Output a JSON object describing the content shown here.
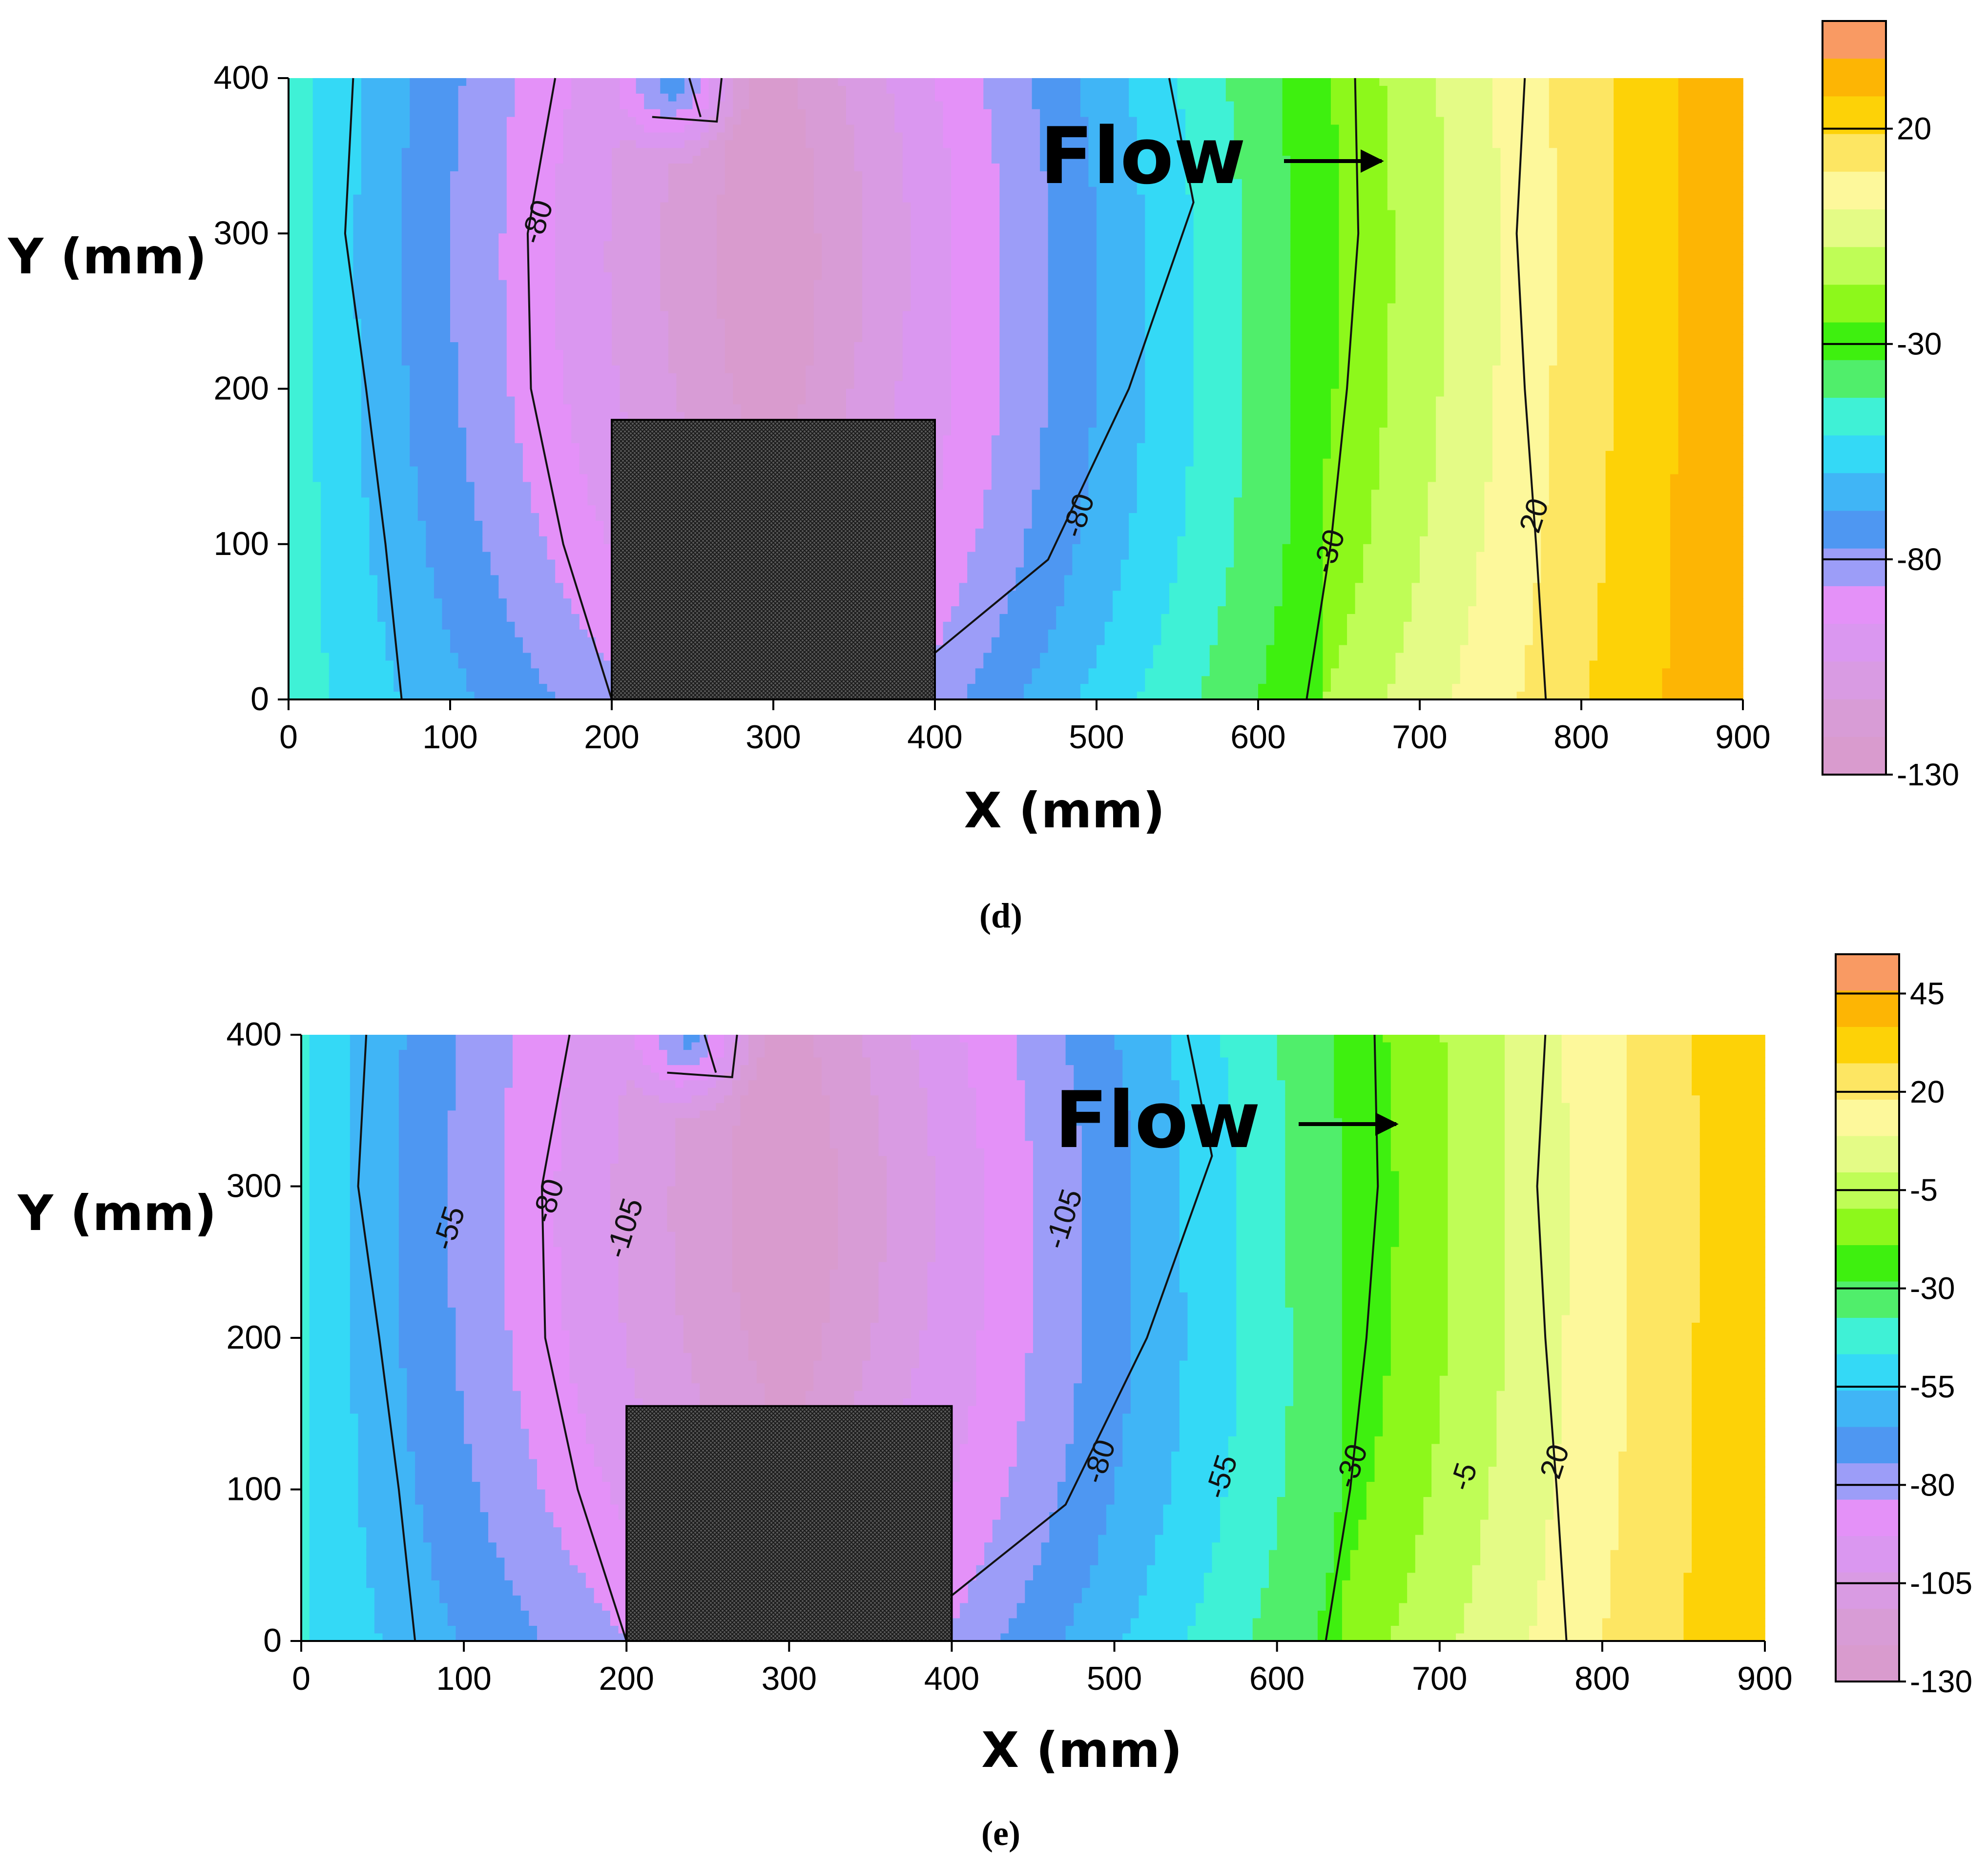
{
  "chart_data": [
    {
      "type": "contour",
      "panel_label": "(d)",
      "panel_letter": "d",
      "annotation": "Flow",
      "xlabel": "X (mm)",
      "ylabel": "Y (mm)",
      "xlim": [
        0,
        900
      ],
      "ylim": [
        0,
        400
      ],
      "x_ticks": [
        "0",
        "100",
        "200",
        "300",
        "400",
        "500",
        "600",
        "700",
        "800",
        "900"
      ],
      "y_ticks": [
        "0",
        "100",
        "200",
        "300",
        "400"
      ],
      "obstacle": {
        "x0": 200,
        "x1": 400,
        "y0": 0,
        "y1": 180
      },
      "colorbar": {
        "range": [
          -130,
          45
        ],
        "labels": [
          "20",
          "-30",
          "-80",
          "-130"
        ],
        "colors": [
          "#f99a63",
          "#fdb504",
          "#fdd207",
          "#fde663",
          "#fdf89b",
          "#e4fb86",
          "#bffd56",
          "#8df81b",
          "#3ef00f",
          "#50ee6b",
          "#3ff1d6",
          "#34d9f6",
          "#40b5f6",
          "#4e97f2",
          "#9c9df8",
          "#e491f8",
          "#da97f0",
          "#d99be3",
          "#d89cd6",
          "#d99bce"
        ]
      },
      "contour_labels": [
        {
          "text": "-80",
          "x": 155,
          "y": 307
        },
        {
          "text": "-80",
          "x": 490,
          "y": 118
        },
        {
          "text": "-30",
          "x": 645,
          "y": 95
        },
        {
          "text": "20",
          "x": 772,
          "y": 118
        }
      ]
    },
    {
      "type": "contour",
      "panel_label": "(e)",
      "panel_letter": "e",
      "annotation": "Flow",
      "xlabel": "X (mm)",
      "ylabel": "Y (mm)",
      "xlim": [
        0,
        900
      ],
      "ylim": [
        0,
        400
      ],
      "x_ticks": [
        "0",
        "100",
        "200",
        "300",
        "400",
        "500",
        "600",
        "700",
        "800",
        "900"
      ],
      "y_ticks": [
        "0",
        "100",
        "200",
        "300",
        "400"
      ],
      "obstacle": {
        "x0": 200,
        "x1": 400,
        "y0": 0,
        "y1": 155
      },
      "colorbar": {
        "range": [
          -130,
          55
        ],
        "labels": [
          "45",
          "20",
          "-5",
          "-30",
          "-55",
          "-80",
          "-105",
          "-130"
        ],
        "colors": [
          "#f99a63",
          "#fdb504",
          "#fdd207",
          "#fde663",
          "#fdf89b",
          "#e4fb86",
          "#bffd56",
          "#8df81b",
          "#3ef00f",
          "#50ee6b",
          "#3ff1d6",
          "#34d9f6",
          "#40b5f6",
          "#4e97f2",
          "#9c9df8",
          "#e491f8",
          "#da97f0",
          "#d99be3",
          "#d89cd6",
          "#d99bce"
        ]
      },
      "contour_labels": [
        {
          "text": "-55",
          "x": 92,
          "y": 272
        },
        {
          "text": "-80",
          "x": 153,
          "y": 290
        },
        {
          "text": "-105",
          "x": 200,
          "y": 272
        },
        {
          "text": "-105",
          "x": 470,
          "y": 278
        },
        {
          "text": "-80",
          "x": 492,
          "y": 118
        },
        {
          "text": "-55",
          "x": 567,
          "y": 108
        },
        {
          "text": "-30",
          "x": 647,
          "y": 115
        },
        {
          "text": "-5",
          "x": 716,
          "y": 108
        },
        {
          "text": "20",
          "x": 772,
          "y": 118
        }
      ]
    }
  ]
}
